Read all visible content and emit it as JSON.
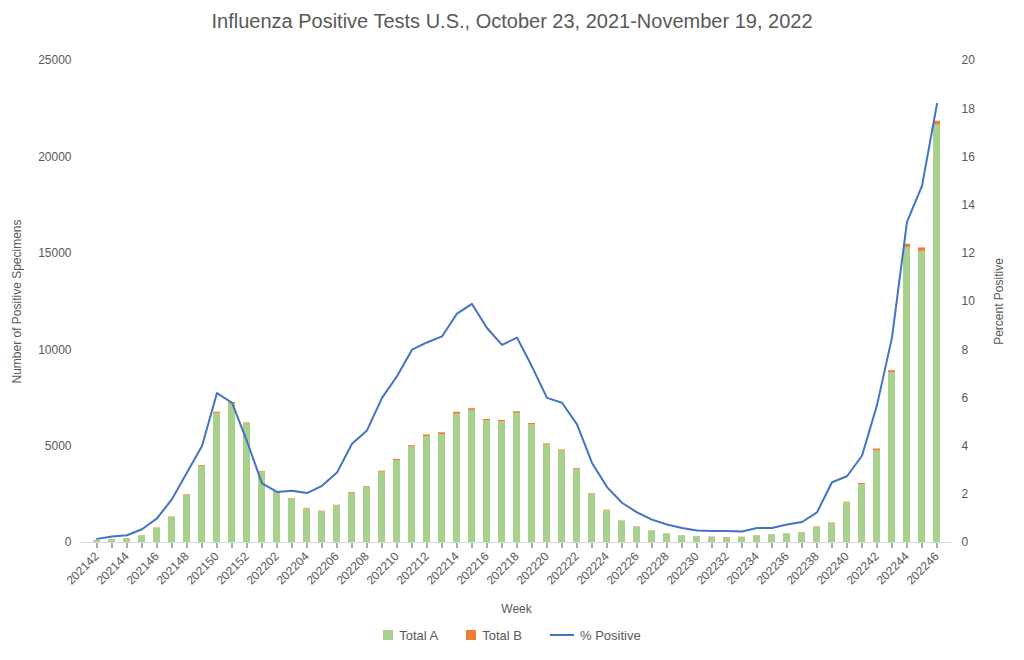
{
  "chart_data": {
    "type": "bar",
    "title": "Influenza Positive Tests U.S., October 23, 2021-November 19, 2022",
    "x_label": "Week",
    "y_label": "Number of Positive Specimens",
    "y2_label": "Percent Positive",
    "categories": [
      "202142",
      null,
      "202144",
      null,
      "202146",
      null,
      "202148",
      null,
      "202150",
      null,
      "202152",
      null,
      "202202",
      null,
      "202204",
      null,
      "202206",
      null,
      "202208",
      null,
      "202210",
      null,
      "202212",
      null,
      "202214",
      null,
      "202216",
      null,
      "202218",
      null,
      "202220",
      null,
      "202222",
      null,
      "202224",
      null,
      "202226",
      null,
      "202228",
      null,
      "202230",
      null,
      "202232",
      null,
      "202234",
      null,
      "202236",
      null,
      "202238",
      null,
      "202240",
      null,
      "202242",
      null,
      "202244",
      null,
      "202246"
    ],
    "stacked": true,
    "grid": false,
    "legend": "bottom",
    "ylim": [
      0,
      25000
    ],
    "yticks": [
      0,
      5000,
      10000,
      15000,
      20000,
      25000
    ],
    "y2lim": [
      0,
      20
    ],
    "y2ticks": [
      0,
      2,
      4,
      6,
      8,
      10,
      12,
      14,
      16,
      18,
      20
    ],
    "series": [
      {
        "name": "Total A",
        "type": "bar",
        "color": "#a9d18e",
        "values": [
          100,
          150,
          200,
          350,
          750,
          1300,
          2450,
          3950,
          6700,
          7200,
          6150,
          3650,
          2600,
          2250,
          1750,
          1600,
          1900,
          2550,
          2850,
          3650,
          4250,
          4950,
          5500,
          5600,
          6650,
          6850,
          6300,
          6250,
          6700,
          6100,
          5050,
          4750,
          3800,
          2500,
          1650,
          1100,
          800,
          600,
          450,
          350,
          300,
          280,
          250,
          270,
          350,
          400,
          450,
          500,
          800,
          1000,
          2050,
          3000,
          4750,
          8800,
          15300,
          15100,
          21650
        ]
      },
      {
        "name": "Total B",
        "type": "bar",
        "color": "#ed7d31",
        "values": [
          5,
          5,
          5,
          10,
          15,
          20,
          30,
          40,
          60,
          60,
          50,
          40,
          30,
          30,
          25,
          25,
          30,
          40,
          40,
          50,
          60,
          70,
          80,
          90,
          100,
          90,
          80,
          80,
          80,
          70,
          60,
          50,
          40,
          30,
          25,
          20,
          15,
          10,
          10,
          10,
          10,
          10,
          10,
          10,
          10,
          10,
          10,
          15,
          15,
          20,
          40,
          60,
          100,
          110,
          170,
          180,
          200
        ]
      },
      {
        "name": "% Positive",
        "type": "line",
        "axis": "y2",
        "color": "#4472c4",
        "values": [
          0.15,
          0.25,
          0.3,
          0.55,
          1.0,
          1.8,
          2.9,
          4.0,
          6.2,
          5.8,
          4.2,
          2.45,
          2.1,
          2.15,
          2.05,
          2.35,
          2.9,
          4.1,
          4.65,
          6.0,
          6.9,
          8.0,
          8.3,
          8.55,
          9.5,
          9.9,
          8.9,
          8.2,
          8.5,
          7.3,
          6.0,
          5.8,
          4.9,
          3.3,
          2.3,
          1.65,
          1.25,
          0.95,
          0.75,
          0.6,
          0.5,
          0.48,
          0.48,
          0.46,
          0.6,
          0.6,
          0.75,
          0.85,
          1.25,
          2.5,
          2.75,
          3.6,
          5.7,
          8.5,
          13.3,
          14.8,
          18.2
        ]
      }
    ]
  }
}
